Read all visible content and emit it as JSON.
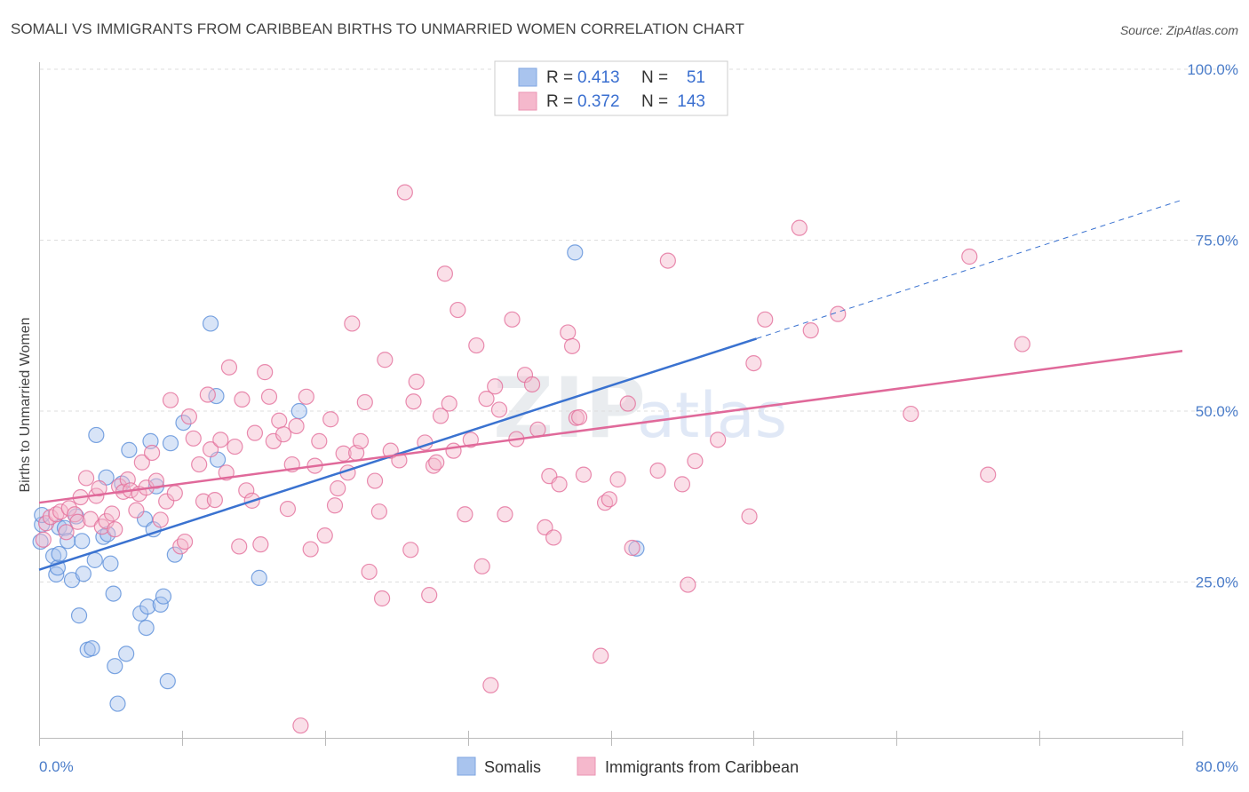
{
  "title": "SOMALI VS IMMIGRANTS FROM CARIBBEAN BIRTHS TO UNMARRIED WOMEN CORRELATION CHART",
  "source": "Source: ZipAtlas.com",
  "watermark": {
    "zip": "ZIP",
    "atlas": "atlas"
  },
  "legend": {
    "rows": [
      {
        "r_label": "R =",
        "r_value": "0.413",
        "n_label": "N =",
        "n_value": "51",
        "color": "#a9c4ee"
      },
      {
        "r_label": "R =",
        "r_value": "0.372",
        "n_label": "N =",
        "n_value": "143",
        "color": "#f5b8cc"
      }
    ]
  },
  "bottom_legend": [
    {
      "label": "Somalis",
      "color": "#a9c4ee"
    },
    {
      "label": "Immigrants from Caribbean",
      "color": "#f5b8cc"
    }
  ],
  "chart_data": {
    "type": "scatter",
    "title": "SOMALI VS IMMIGRANTS FROM CARIBBEAN BIRTHS TO UNMARRIED WOMEN CORRELATION CHART",
    "xlabel": "",
    "ylabel": "Births to Unmarried Women",
    "xlim": [
      0,
      80
    ],
    "ylim": [
      0,
      100
    ],
    "x_tick_labels": [
      "0.0%",
      "80.0%"
    ],
    "y_tick_labels": [
      "25.0%",
      "50.0%",
      "75.0%",
      "100.0%"
    ],
    "y_ticks": [
      25,
      50,
      75,
      100
    ],
    "grid": true,
    "legend_position": "top-center",
    "series": [
      {
        "name": "Somalis",
        "color": "#5b8fd9",
        "fill": "#a9c4ee",
        "trend": {
          "x": [
            0,
            50.2
          ],
          "y": [
            26.8,
            60.6
          ],
          "extend_to_x": 80,
          "extend_to_y": 80.9,
          "color": "#3a72d0"
        },
        "points": [
          [
            0.1,
            30.9
          ],
          [
            0.2,
            33.4
          ],
          [
            0.2,
            34.8
          ],
          [
            1.0,
            28.8
          ],
          [
            1.2,
            26.1
          ],
          [
            1.3,
            27.1
          ],
          [
            1.4,
            29.1
          ],
          [
            1.4,
            33.0
          ],
          [
            1.8,
            32.9
          ],
          [
            2.0,
            31.0
          ],
          [
            2.3,
            25.3
          ],
          [
            2.6,
            34.6
          ],
          [
            2.8,
            20.1
          ],
          [
            3.0,
            31.0
          ],
          [
            3.1,
            26.2
          ],
          [
            3.4,
            15.1
          ],
          [
            3.7,
            15.3
          ],
          [
            3.9,
            28.2
          ],
          [
            4.0,
            46.5
          ],
          [
            4.5,
            31.6
          ],
          [
            4.8,
            32.0
          ],
          [
            4.7,
            40.3
          ],
          [
            5.0,
            27.7
          ],
          [
            5.2,
            23.3
          ],
          [
            5.3,
            12.7
          ],
          [
            5.5,
            7.2
          ],
          [
            5.8,
            39.4
          ],
          [
            6.1,
            14.5
          ],
          [
            6.3,
            44.3
          ],
          [
            7.1,
            20.4
          ],
          [
            7.4,
            34.2
          ],
          [
            7.5,
            18.3
          ],
          [
            7.6,
            21.4
          ],
          [
            7.8,
            45.6
          ],
          [
            8.0,
            32.7
          ],
          [
            8.2,
            39.0
          ],
          [
            8.5,
            21.7
          ],
          [
            8.7,
            22.9
          ],
          [
            9.0,
            10.5
          ],
          [
            9.2,
            45.3
          ],
          [
            9.5,
            29.0
          ],
          [
            10.1,
            48.3
          ],
          [
            12.0,
            62.8
          ],
          [
            12.4,
            52.2
          ],
          [
            12.5,
            42.9
          ],
          [
            15.4,
            25.6
          ],
          [
            18.2,
            50.0
          ],
          [
            37.5,
            73.2
          ],
          [
            41.8,
            29.9
          ]
        ]
      },
      {
        "name": "Immigrants from Caribbean",
        "color": "#e46f9b",
        "fill": "#f5b8cc",
        "trend": {
          "x": [
            0,
            80
          ],
          "y": [
            36.6,
            58.8
          ],
          "color": "#e0699a"
        },
        "points": [
          [
            0.3,
            31.2
          ],
          [
            0.5,
            33.6
          ],
          [
            0.8,
            34.5
          ],
          [
            1.2,
            34.9
          ],
          [
            1.5,
            35.3
          ],
          [
            1.9,
            32.3
          ],
          [
            2.1,
            35.8
          ],
          [
            2.5,
            34.9
          ],
          [
            2.7,
            33.8
          ],
          [
            2.9,
            37.4
          ],
          [
            3.3,
            40.2
          ],
          [
            3.6,
            34.2
          ],
          [
            4.0,
            37.6
          ],
          [
            4.2,
            38.7
          ],
          [
            4.4,
            33.1
          ],
          [
            4.7,
            33.9
          ],
          [
            5.1,
            35.0
          ],
          [
            5.3,
            32.7
          ],
          [
            5.6,
            39.0
          ],
          [
            5.9,
            38.2
          ],
          [
            6.2,
            40.0
          ],
          [
            6.4,
            38.4
          ],
          [
            6.8,
            35.5
          ],
          [
            7.0,
            37.9
          ],
          [
            7.2,
            42.5
          ],
          [
            7.5,
            38.8
          ],
          [
            7.9,
            43.9
          ],
          [
            8.2,
            39.8
          ],
          [
            8.5,
            34.1
          ],
          [
            8.9,
            36.8
          ],
          [
            9.2,
            51.6
          ],
          [
            9.5,
            38.0
          ],
          [
            9.9,
            30.2
          ],
          [
            10.2,
            30.9
          ],
          [
            10.5,
            49.2
          ],
          [
            10.8,
            46.0
          ],
          [
            11.2,
            42.2
          ],
          [
            11.5,
            36.8
          ],
          [
            11.8,
            52.4
          ],
          [
            12.0,
            44.4
          ],
          [
            12.3,
            37.0
          ],
          [
            12.7,
            45.8
          ],
          [
            13.1,
            41.0
          ],
          [
            13.3,
            56.4
          ],
          [
            13.7,
            44.8
          ],
          [
            14.0,
            30.2
          ],
          [
            14.2,
            51.7
          ],
          [
            14.5,
            38.4
          ],
          [
            14.9,
            36.9
          ],
          [
            15.1,
            46.8
          ],
          [
            15.5,
            30.5
          ],
          [
            15.8,
            55.7
          ],
          [
            16.1,
            52.1
          ],
          [
            16.4,
            45.6
          ],
          [
            16.8,
            48.6
          ],
          [
            17.1,
            46.6
          ],
          [
            17.4,
            35.7
          ],
          [
            17.7,
            42.2
          ],
          [
            18.0,
            47.8
          ],
          [
            18.3,
            4.0
          ],
          [
            18.7,
            52.1
          ],
          [
            19.0,
            29.8
          ],
          [
            19.3,
            42.0
          ],
          [
            19.6,
            45.6
          ],
          [
            20.0,
            31.8
          ],
          [
            20.4,
            48.8
          ],
          [
            20.7,
            36.2
          ],
          [
            20.9,
            38.7
          ],
          [
            21.3,
            43.8
          ],
          [
            21.6,
            41.0
          ],
          [
            21.9,
            62.8
          ],
          [
            22.2,
            43.9
          ],
          [
            22.5,
            45.6
          ],
          [
            22.8,
            51.3
          ],
          [
            23.1,
            26.5
          ],
          [
            23.5,
            39.8
          ],
          [
            23.8,
            35.3
          ],
          [
            24.0,
            22.6
          ],
          [
            24.2,
            57.5
          ],
          [
            24.6,
            44.2
          ],
          [
            25.2,
            42.8
          ],
          [
            25.6,
            82.0
          ],
          [
            26.0,
            29.7
          ],
          [
            26.2,
            51.4
          ],
          [
            26.4,
            54.3
          ],
          [
            27.0,
            45.4
          ],
          [
            27.3,
            23.1
          ],
          [
            27.6,
            42.0
          ],
          [
            27.8,
            42.5
          ],
          [
            28.1,
            49.3
          ],
          [
            28.4,
            70.1
          ],
          [
            28.7,
            51.1
          ],
          [
            29.0,
            44.2
          ],
          [
            29.3,
            64.8
          ],
          [
            29.8,
            34.9
          ],
          [
            30.2,
            45.8
          ],
          [
            30.6,
            59.6
          ],
          [
            31.0,
            27.3
          ],
          [
            31.3,
            51.8
          ],
          [
            31.6,
            9.9
          ],
          [
            31.9,
            53.6
          ],
          [
            32.2,
            50.2
          ],
          [
            32.6,
            34.9
          ],
          [
            33.1,
            63.4
          ],
          [
            33.4,
            45.9
          ],
          [
            34.0,
            55.3
          ],
          [
            34.5,
            53.9
          ],
          [
            34.9,
            47.3
          ],
          [
            35.4,
            33.0
          ],
          [
            35.7,
            40.5
          ],
          [
            36.0,
            31.5
          ],
          [
            36.4,
            39.3
          ],
          [
            37.0,
            61.5
          ],
          [
            37.3,
            59.5
          ],
          [
            37.6,
            49.0
          ],
          [
            37.8,
            49.1
          ],
          [
            38.1,
            40.7
          ],
          [
            39.3,
            14.2
          ],
          [
            39.6,
            36.6
          ],
          [
            39.9,
            37.1
          ],
          [
            40.5,
            40.0
          ],
          [
            41.2,
            51.1
          ],
          [
            41.5,
            30.0
          ],
          [
            43.3,
            41.3
          ],
          [
            44.0,
            72.0
          ],
          [
            45.0,
            39.3
          ],
          [
            45.4,
            24.6
          ],
          [
            45.9,
            42.7
          ],
          [
            47.5,
            45.8
          ],
          [
            49.7,
            34.6
          ],
          [
            50.0,
            57.0
          ],
          [
            50.8,
            63.4
          ],
          [
            53.2,
            76.8
          ],
          [
            54.0,
            61.8
          ],
          [
            55.9,
            64.2
          ],
          [
            61.0,
            49.6
          ],
          [
            65.1,
            72.6
          ],
          [
            66.4,
            40.7
          ],
          [
            68.8,
            59.8
          ]
        ]
      }
    ]
  }
}
